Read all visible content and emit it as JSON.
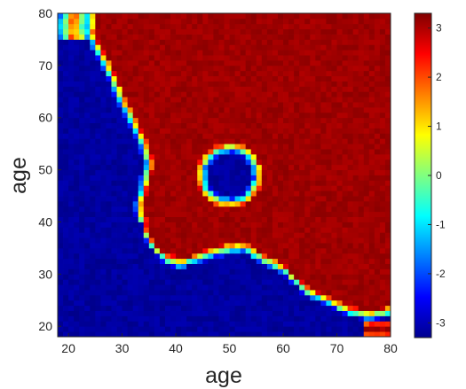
{
  "chart_data": {
    "type": "heatmap",
    "xlabel": "age",
    "ylabel": "age",
    "xlim": [
      18,
      80
    ],
    "ylim": [
      18,
      80
    ],
    "x_ticks": [
      "20",
      "30",
      "40",
      "50",
      "60",
      "70",
      "80"
    ],
    "y_ticks": [
      "20",
      "30",
      "40",
      "50",
      "60",
      "70",
      "80"
    ],
    "colormap": "jet",
    "clim": [
      -3.3,
      3.3
    ],
    "colorbar": {
      "position": "right",
      "ticks": [
        "3",
        "2",
        "1",
        "0",
        "-1",
        "-2",
        "-3"
      ],
      "tick_values": [
        3,
        2,
        1,
        0,
        -1,
        -2,
        -3
      ]
    },
    "grid": false,
    "regions": [
      {
        "description_value": 3.1,
        "area": "upper-right region bounded by curved boundary"
      },
      {
        "description_value": -3.1,
        "area": "lower-left region"
      },
      {
        "description_value": -3.1,
        "area": "circular hole centered at (50, 49), radius 5"
      },
      {
        "description_value": 3.1,
        "area": "bottom-right corner patch near (78, 19)"
      },
      {
        "description_value": 3.1,
        "area": "top-left corner patch near (20, 78)"
      }
    ],
    "boundary": [
      [
        24,
        80
      ],
      [
        24,
        76
      ],
      [
        26,
        72
      ],
      [
        28,
        68
      ],
      [
        30,
        63
      ],
      [
        32,
        59
      ],
      [
        34,
        55
      ],
      [
        35,
        51
      ],
      [
        34,
        47
      ],
      [
        33,
        43
      ],
      [
        34,
        38
      ],
      [
        36,
        35
      ],
      [
        38,
        33
      ],
      [
        41,
        32
      ],
      [
        44,
        33
      ],
      [
        47,
        34
      ],
      [
        50,
        35
      ],
      [
        53,
        35
      ],
      [
        56,
        33
      ],
      [
        60,
        31
      ],
      [
        64,
        27
      ],
      [
        68,
        25
      ],
      [
        72,
        23
      ],
      [
        76,
        22
      ],
      [
        80,
        23
      ]
    ]
  }
}
